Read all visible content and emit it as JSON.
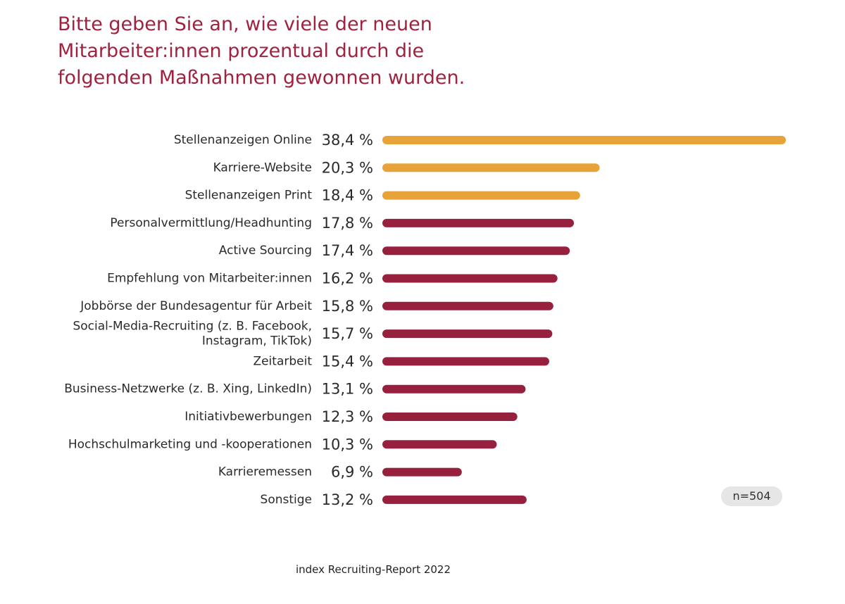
{
  "title_lines": [
    "Bitte geben Sie an, wie viele der neuen",
    "Mitarbeiter:innen prozentual durch die",
    "folgenden Maßnahmen gewonnen wurden."
  ],
  "sample_size": "n=504",
  "source": "index Recruiting-Report 2022",
  "colors": {
    "highlight": "#e8a23a",
    "standard": "#97203e",
    "title": "#a0223f"
  },
  "chart_data": {
    "type": "bar",
    "orientation": "horizontal",
    "title": "Bitte geben Sie an, wie viele der neuen Mitarbeiter:innen prozentual durch die folgenden Maßnahmen gewonnen wurden.",
    "xlabel": "",
    "ylabel": "",
    "xlim": [
      0,
      38.4
    ],
    "grid": false,
    "legend": "none",
    "unit": "%",
    "categories": [
      "Stellenanzeigen Online",
      "Karriere-Website",
      "Stellenanzeigen Print",
      "Personalvermittlung/Headhunting",
      "Active Sourcing",
      "Empfehlung von Mitarbeiter:innen",
      "Jobbörse der Bundesagentur für Arbeit",
      "Social-Media-Recruiting (z. B. Facebook, Instagram, TikTok)",
      "Zeitarbeit",
      "Business-Netzwerke (z. B. Xing, LinkedIn)",
      "Initiativbewerbungen",
      "Hochschulmarketing und -kooperationen",
      "Karrieremessen",
      "Sonstige"
    ],
    "label_lines": [
      [
        "Stellenanzeigen Online"
      ],
      [
        "Karriere-Website"
      ],
      [
        "Stellenanzeigen Print"
      ],
      [
        "Personalvermittlung/Headhunting"
      ],
      [
        "Active Sourcing"
      ],
      [
        "Empfehlung von Mitarbeiter:innen"
      ],
      [
        "Jobbörse der Bundesagentur für Arbeit"
      ],
      [
        "Social-Media-Recruiting (z. B. Facebook,",
        "Instagram, TikTok)"
      ],
      [
        "Zeitarbeit"
      ],
      [
        "Business-Netzwerke (z. B. Xing, LinkedIn)"
      ],
      [
        "Initiativbewerbungen"
      ],
      [
        "Hochschulmarketing und -kooperationen"
      ],
      [
        "Karrieremessen"
      ],
      [
        "Sonstige"
      ]
    ],
    "values": [
      38.4,
      20.3,
      18.4,
      17.8,
      17.4,
      16.2,
      15.8,
      15.7,
      15.4,
      13.1,
      12.3,
      10.3,
      6.9,
      13.2
    ],
    "value_labels": [
      "38,4 %",
      "20,3 %",
      "18,4 %",
      "17,8 %",
      "17,4 %",
      "16,2 %",
      "15,8 %",
      "15,7 %",
      "15,4 %",
      "13,1 %",
      "12,3 %",
      "10,3 %",
      "6,9 %",
      "13,2 %"
    ],
    "highlighted": [
      true,
      true,
      true,
      false,
      false,
      false,
      false,
      false,
      false,
      false,
      false,
      false,
      false,
      false
    ]
  }
}
